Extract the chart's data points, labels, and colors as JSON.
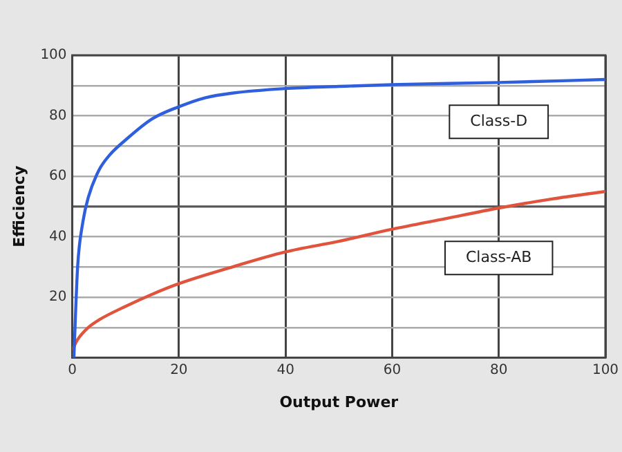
{
  "chart_data": {
    "type": "line",
    "xlabel": "Output Power",
    "ylabel": "Efficiency",
    "xlim": [
      0,
      100
    ],
    "xticks": [
      0,
      20,
      40,
      60,
      80,
      100
    ],
    "ylim": [
      0,
      100
    ],
    "yticks": [
      {
        "value": 0,
        "label": null
      },
      {
        "value": 10,
        "label": null
      },
      20,
      {
        "value": 30,
        "label": null
      },
      40,
      {
        "value": 50,
        "label": null
      },
      60,
      {
        "value": 70,
        "label": null
      },
      80,
      {
        "value": 90,
        "label": null
      },
      100
    ],
    "grid": true,
    "legend": false,
    "marker": "none",
    "line_style": "solid",
    "ref_lines": [
      {
        "axis": "y",
        "value": 50,
        "color": "#555555"
      }
    ],
    "series": [
      {
        "name": "Class-D",
        "color": "#2f5fdd",
        "x": [
          0.3,
          1,
          2,
          3,
          5,
          7,
          10,
          15,
          20,
          25,
          30,
          40,
          50,
          60,
          80,
          100
        ],
        "values": [
          0,
          30,
          45,
          53,
          62,
          67,
          72,
          79,
          83,
          86,
          87.5,
          89,
          89.7,
          90.3,
          91,
          92
        ]
      },
      {
        "name": "Class-AB",
        "color": "#e0533c",
        "x": [
          0,
          1,
          3,
          5,
          10,
          15,
          20,
          30,
          40,
          50,
          60,
          70,
          80,
          90,
          100
        ],
        "values": [
          2.5,
          6,
          10,
          12.5,
          17,
          21,
          24.5,
          30,
          35,
          38.5,
          42.5,
          46,
          49.5,
          52.5,
          55
        ]
      }
    ]
  }
}
